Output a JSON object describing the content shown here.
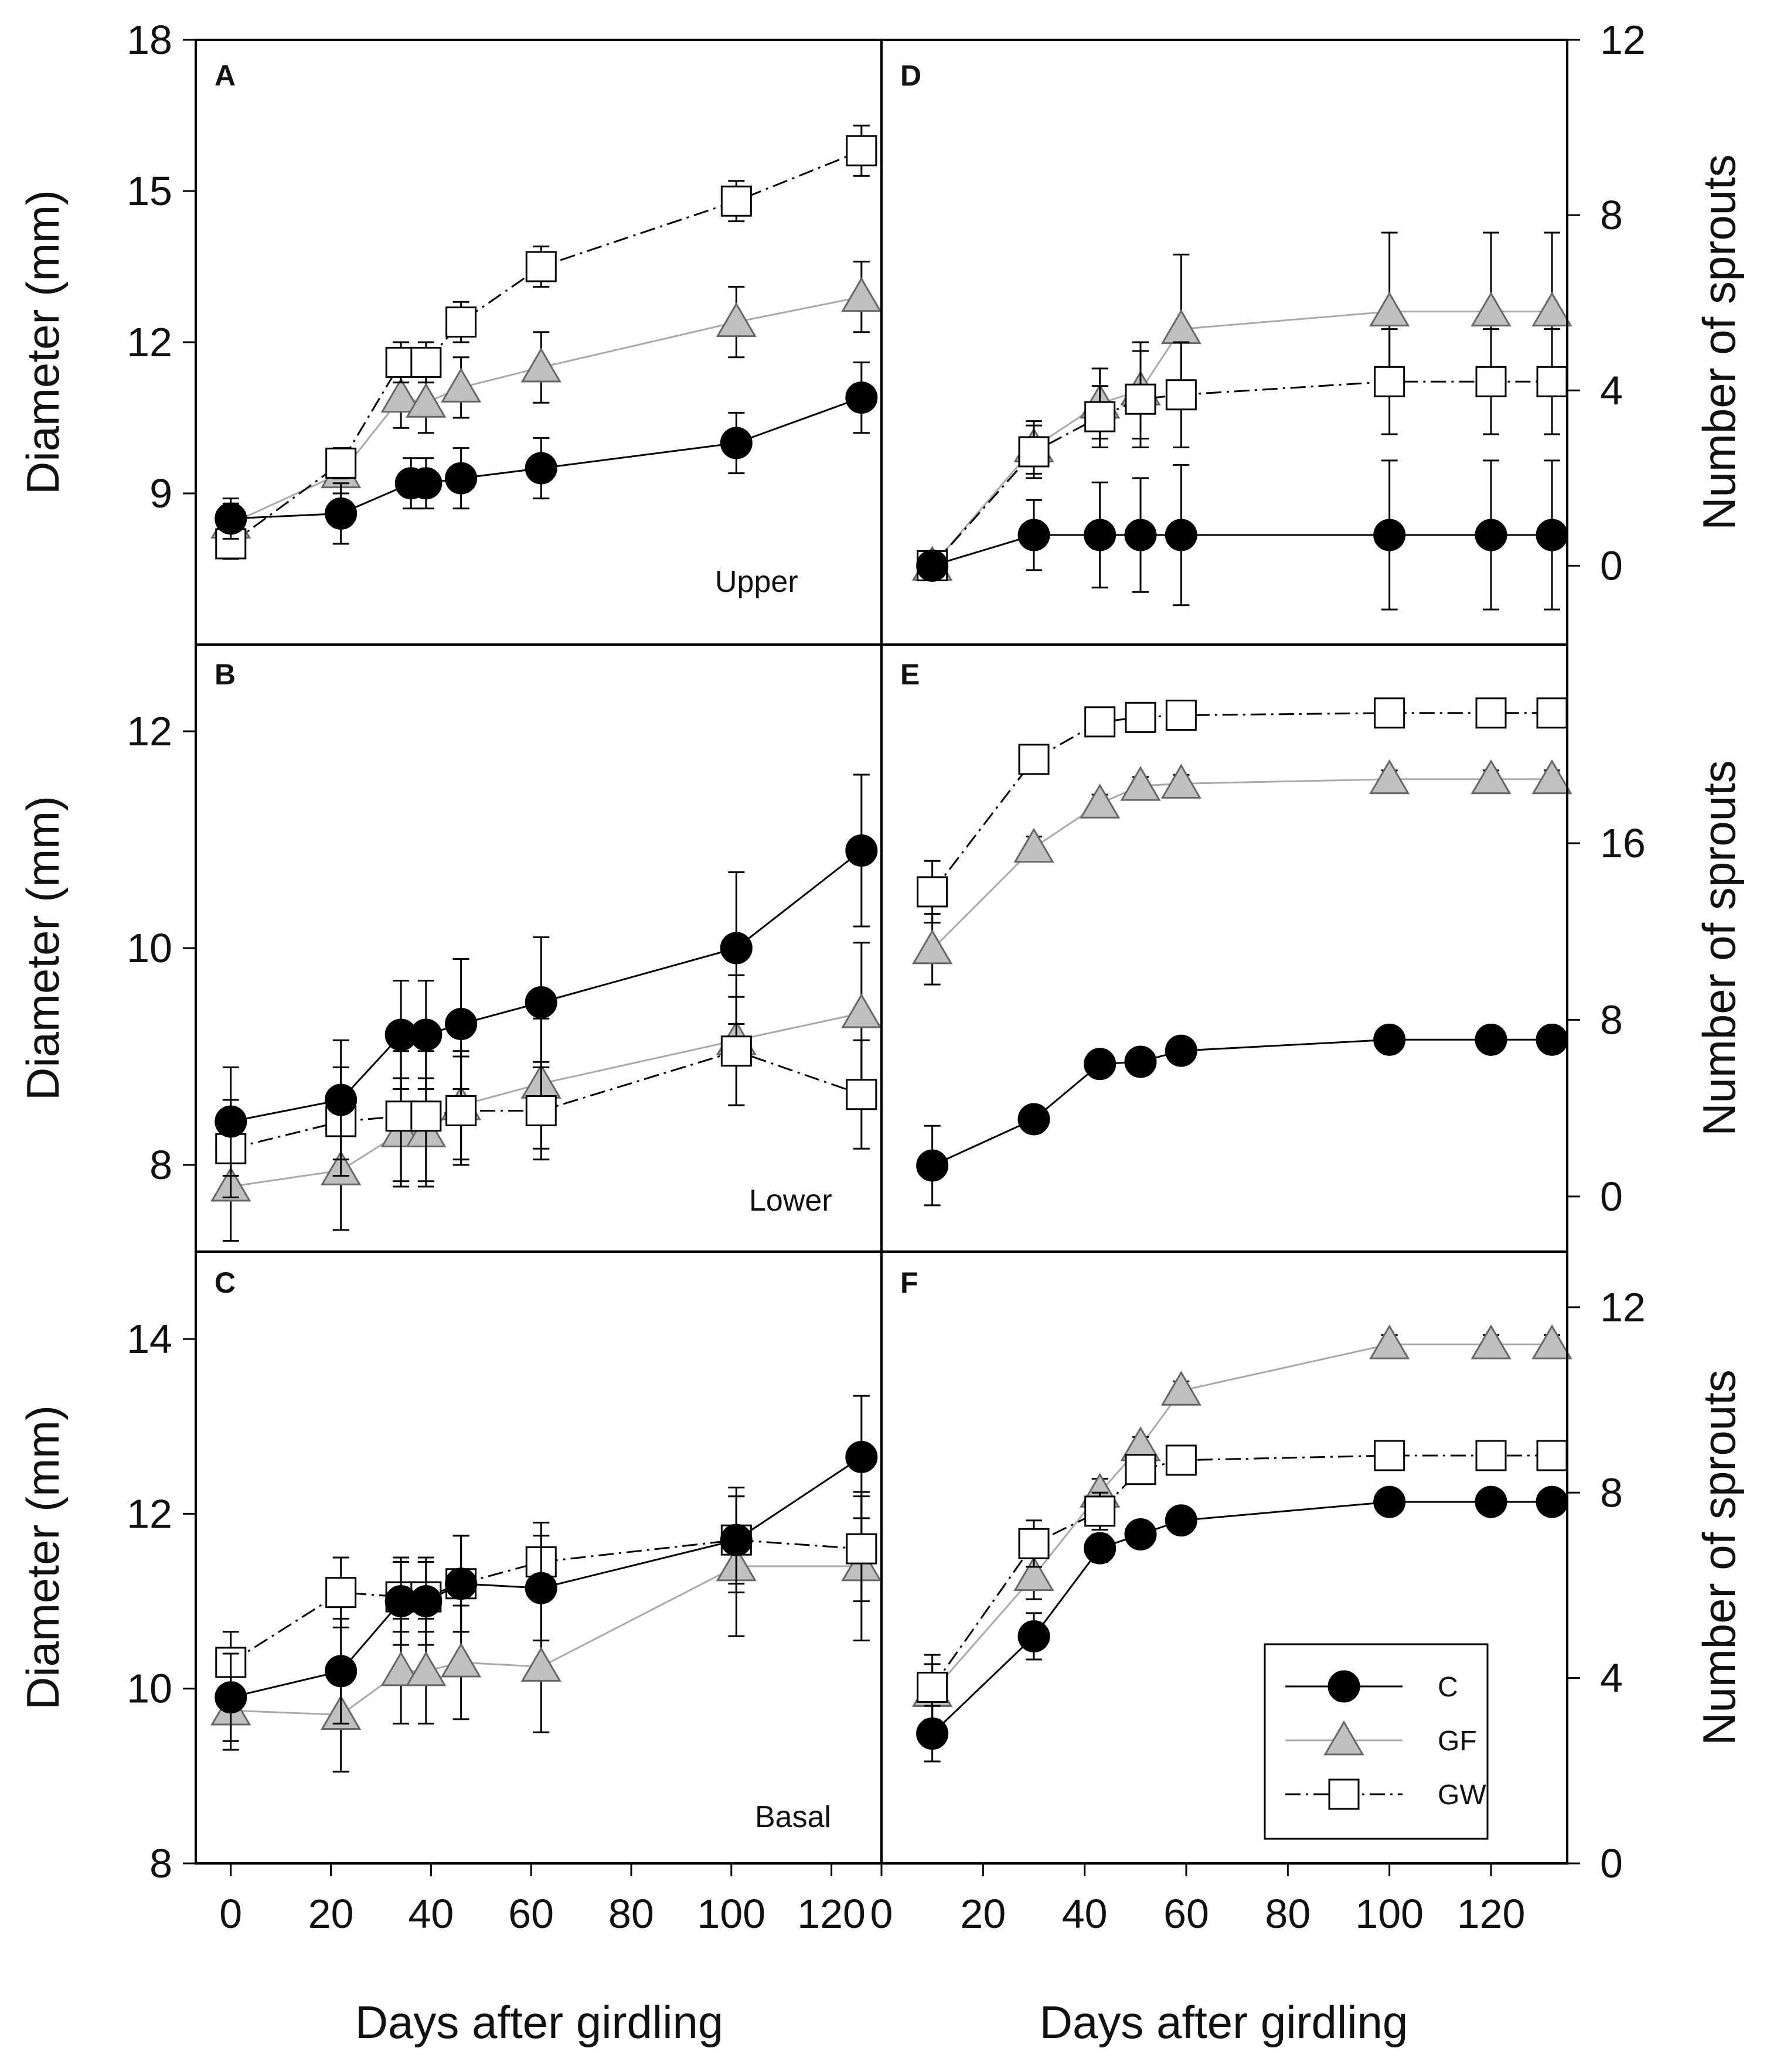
{
  "figure": {
    "x_axis_title": "Days after girdling",
    "left_axis_title": "Diameter (mm)",
    "right_axis_title": "Number of sprouts"
  },
  "legend": {
    "items": [
      {
        "label": "C",
        "marker": "circle",
        "line": "solid"
      },
      {
        "label": "GF",
        "marker": "triangle",
        "line": "solid-gray"
      },
      {
        "label": "GW",
        "marker": "square",
        "line": "dash-dot"
      }
    ]
  },
  "colors": {
    "C_fill": "#000000",
    "C_line": "#000000",
    "GF_fill": "#c0c0c0",
    "GF_line": "#aaaaaa",
    "GW_fill": "#ffffff",
    "GW_line": "#000000",
    "axis": "#000000"
  },
  "chart_data": [
    {
      "id": "A",
      "type": "line",
      "panel_label": "A",
      "position_label": "Upper",
      "ylabel": "Diameter (mm)",
      "xlabel": "Days after girdling",
      "ylim": [
        6,
        18
      ],
      "yticks": [
        9,
        12,
        15,
        18
      ],
      "xlim": [
        -7,
        130
      ],
      "xticks": [
        0,
        20,
        40,
        60,
        80,
        100,
        120
      ],
      "series": [
        {
          "name": "C",
          "x": [
            0,
            22,
            36,
            39,
            46,
            62,
            101,
            126
          ],
          "y": [
            8.5,
            8.6,
            9.2,
            9.2,
            9.3,
            9.5,
            10.0,
            10.9
          ],
          "err": [
            0.4,
            0.6,
            0.5,
            0.5,
            0.6,
            0.6,
            0.6,
            0.7
          ]
        },
        {
          "name": "GF",
          "x": [
            0,
            22,
            34,
            39,
            46,
            62,
            101,
            126
          ],
          "y": [
            8.4,
            9.4,
            10.9,
            10.8,
            11.1,
            11.5,
            12.4,
            12.9
          ],
          "err": [
            0.4,
            0.4,
            0.6,
            0.6,
            0.6,
            0.7,
            0.7,
            0.7
          ]
        },
        {
          "name": "GW",
          "x": [
            0,
            22,
            34,
            39,
            46,
            62,
            101,
            126
          ],
          "y": [
            8.0,
            9.6,
            11.6,
            11.6,
            12.4,
            13.5,
            14.8,
            15.8
          ],
          "err": [
            0.3,
            0.3,
            0.4,
            0.4,
            0.4,
            0.4,
            0.4,
            0.5
          ]
        }
      ]
    },
    {
      "id": "B",
      "type": "line",
      "panel_label": "B",
      "position_label": "Lower",
      "ylabel": "Diameter (mm)",
      "xlabel": "Days after girdling",
      "ylim": [
        7.2,
        12.8
      ],
      "yticks": [
        8,
        10,
        12
      ],
      "xlim": [
        -7,
        130
      ],
      "xticks": [
        0,
        20,
        40,
        60,
        80,
        100,
        120
      ],
      "series": [
        {
          "name": "C",
          "x": [
            0,
            22,
            34,
            39,
            46,
            62,
            101,
            126
          ],
          "y": [
            8.4,
            8.6,
            9.2,
            9.2,
            9.3,
            9.5,
            10.0,
            10.9
          ],
          "err": [
            0.5,
            0.55,
            0.5,
            0.5,
            0.6,
            0.6,
            0.7,
            0.7
          ]
        },
        {
          "name": "GF",
          "x": [
            0,
            22,
            34,
            39,
            46,
            62,
            101,
            126
          ],
          "y": [
            7.8,
            7.95,
            8.3,
            8.3,
            8.55,
            8.75,
            9.15,
            9.4
          ],
          "err": [
            0.5,
            0.55,
            0.5,
            0.5,
            0.5,
            0.6,
            0.6,
            0.65
          ]
        },
        {
          "name": "GW",
          "x": [
            0,
            22,
            34,
            39,
            46,
            62,
            101,
            126
          ],
          "y": [
            8.15,
            8.4,
            8.45,
            8.45,
            8.5,
            8.5,
            9.05,
            8.65
          ],
          "err": [
            0.45,
            0.5,
            0.6,
            0.6,
            0.5,
            0.45,
            0.5,
            0.5
          ]
        }
      ]
    },
    {
      "id": "C",
      "type": "line",
      "panel_label": "C",
      "position_label": "Basal",
      "ylabel": "Diameter (mm)",
      "xlabel": "Days after girdling",
      "ylim": [
        8,
        15
      ],
      "yticks": [
        8,
        10,
        12,
        14
      ],
      "xlim": [
        -7,
        130
      ],
      "xticks": [
        0,
        20,
        40,
        60,
        80,
        100,
        120
      ],
      "series": [
        {
          "name": "C",
          "x": [
            0,
            22,
            34,
            39,
            46,
            62,
            101,
            126
          ],
          "y": [
            9.9,
            10.2,
            11.0,
            11.0,
            11.2,
            11.15,
            11.7,
            12.65
          ],
          "err": [
            0.5,
            0.6,
            0.5,
            0.5,
            0.55,
            0.6,
            0.5,
            0.7
          ]
        },
        {
          "name": "GF",
          "x": [
            0,
            22,
            34,
            39,
            46,
            62,
            101,
            126
          ],
          "y": [
            9.75,
            9.7,
            10.2,
            10.2,
            10.3,
            10.25,
            11.4,
            11.4
          ],
          "err": [
            0.45,
            0.65,
            0.6,
            0.6,
            0.65,
            0.75,
            0.8,
            0.85
          ]
        },
        {
          "name": "GW",
          "x": [
            0,
            22,
            34,
            39,
            46,
            62,
            101,
            126
          ],
          "y": [
            10.3,
            11.1,
            11.05,
            11.05,
            11.2,
            11.45,
            11.7,
            11.6
          ],
          "err": [
            0.35,
            0.4,
            0.4,
            0.4,
            0.55,
            0.45,
            0.6,
            0.6
          ]
        }
      ]
    },
    {
      "id": "D",
      "type": "line",
      "panel_label": "D",
      "ylabel": "Number of sprouts",
      "xlabel": "Days after girdling",
      "ylim": [
        -1.8,
        12
      ],
      "yticks": [
        0,
        4,
        8,
        12
      ],
      "xlim": [
        0,
        135
      ],
      "xticks": [
        0,
        20,
        40,
        60,
        80,
        100,
        120
      ],
      "series": [
        {
          "name": "C",
          "x": [
            10,
            30,
            43,
            51,
            59,
            100,
            120,
            132
          ],
          "y": [
            0,
            0.7,
            0.7,
            0.7,
            0.7,
            0.7,
            0.7,
            0.7
          ],
          "err": [
            0,
            0.8,
            1.2,
            1.3,
            1.6,
            1.7,
            1.7,
            1.7
          ]
        },
        {
          "name": "GF",
          "x": [
            10,
            30,
            43,
            51,
            59,
            100,
            120,
            132
          ],
          "y": [
            0,
            2.7,
            3.7,
            4.0,
            5.4,
            5.8,
            5.8,
            5.8
          ],
          "err": [
            0,
            0.6,
            0.8,
            1.1,
            1.7,
            1.8,
            1.8,
            1.8
          ]
        },
        {
          "name": "GW",
          "x": [
            10,
            30,
            43,
            51,
            59,
            100,
            120,
            132
          ],
          "y": [
            0,
            2.6,
            3.4,
            3.8,
            3.9,
            4.2,
            4.2,
            4.2
          ],
          "err": [
            0,
            0.6,
            0.7,
            1.1,
            1.2,
            1.2,
            1.2,
            1.2
          ]
        }
      ]
    },
    {
      "id": "E",
      "type": "line",
      "panel_label": "E",
      "ylabel": "Number of sprouts",
      "xlabel": "Days after girdling",
      "ylim": [
        -2.5,
        25
      ],
      "yticks": [
        0,
        8,
        16
      ],
      "xlim": [
        0,
        135
      ],
      "xticks": [
        0,
        20,
        40,
        60,
        80,
        100,
        120
      ],
      "series": [
        {
          "name": "C",
          "x": [
            10,
            30,
            43,
            51,
            59,
            100,
            120,
            132
          ],
          "y": [
            1.4,
            3.5,
            6.0,
            6.1,
            6.6,
            7.1,
            7.1,
            7.1
          ],
          "err": [
            1.8,
            0.6,
            0.5,
            0.4,
            0.4,
            0.4,
            0.4,
            0.4
          ]
        },
        {
          "name": "GF",
          "x": [
            10,
            30,
            43,
            51,
            59,
            100,
            120,
            132
          ],
          "y": [
            11.2,
            15.8,
            17.8,
            18.6,
            18.7,
            18.9,
            18.9,
            18.9
          ],
          "err": [
            1.6,
            0.5,
            0.4,
            0.4,
            0.4,
            0.4,
            0.4,
            0.4
          ]
        },
        {
          "name": "GW",
          "x": [
            10,
            30,
            43,
            51,
            59,
            100,
            120,
            132
          ],
          "y": [
            13.8,
            19.8,
            21.5,
            21.7,
            21.8,
            21.9,
            21.9,
            21.9
          ],
          "err": [
            1.4,
            0.5,
            0.4,
            0.4,
            0.4,
            0.4,
            0.4,
            0.4
          ]
        }
      ]
    },
    {
      "id": "F",
      "type": "line",
      "panel_label": "F",
      "ylabel": "Number of sprouts",
      "xlabel": "Days after girdling",
      "ylim": [
        0,
        13.2
      ],
      "yticks": [
        0,
        4,
        8,
        12
      ],
      "xlim": [
        0,
        135
      ],
      "xticks": [
        0,
        20,
        40,
        60,
        80,
        100,
        120
      ],
      "series": [
        {
          "name": "C",
          "x": [
            10,
            30,
            43,
            51,
            59,
            100,
            120,
            132
          ],
          "y": [
            2.8,
            4.9,
            6.8,
            7.1,
            7.4,
            7.8,
            7.8,
            7.8
          ],
          "err": [
            0.6,
            0.5,
            0.3,
            0.2,
            0.2,
            0.2,
            0.2,
            0.2
          ]
        },
        {
          "name": "GF",
          "x": [
            10,
            30,
            43,
            51,
            59,
            100,
            120,
            132
          ],
          "y": [
            3.7,
            6.2,
            8.0,
            9.0,
            10.2,
            11.2,
            11.2,
            11.2
          ],
          "err": [
            0.6,
            0.5,
            0.3,
            0.2,
            0.2,
            0.2,
            0.2,
            0.2
          ]
        },
        {
          "name": "GW",
          "x": [
            10,
            30,
            43,
            51,
            59,
            100,
            120,
            132
          ],
          "y": [
            3.8,
            6.9,
            7.6,
            8.5,
            8.7,
            8.8,
            8.8,
            8.8
          ],
          "err": [
            0.7,
            0.5,
            0.4,
            0.3,
            0.3,
            0.3,
            0.3,
            0.3
          ]
        }
      ]
    }
  ]
}
